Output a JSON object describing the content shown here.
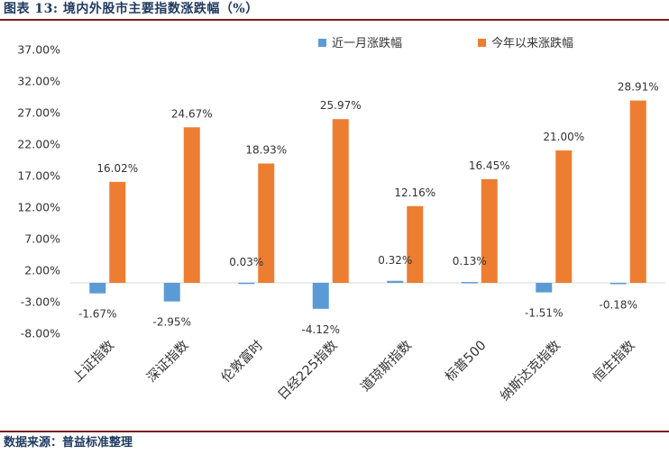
{
  "header": {
    "title": "图表 13:  境内外股市主要指数涨跌幅（%）"
  },
  "footer": {
    "source": "数据来源：普益标准整理"
  },
  "colors": {
    "blue": "#5b9bd5",
    "orange": "#ed7d31",
    "title": "#1f3a60",
    "rule": "#7a1f1f"
  },
  "chart_data": {
    "type": "bar",
    "title": "境内外股市主要指数涨跌幅（%）",
    "categories": [
      "上证指数",
      "深证指数",
      "伦敦富时",
      "日经225指数",
      "道琼斯指数",
      "标普500",
      "纳斯达克指数",
      "恒生指数"
    ],
    "series": [
      {
        "name": "近一月涨跌幅",
        "color": "#5b9bd5",
        "values": [
          -1.67,
          -2.95,
          0.03,
          -4.12,
          0.32,
          0.13,
          -1.51,
          -0.18
        ],
        "labels": [
          "-1.67%",
          "-2.95%",
          "0.03%",
          "-4.12%",
          "0.32%",
          "0.13%",
          "-1.51%",
          "-0.18%"
        ]
      },
      {
        "name": "今年以来涨跌幅",
        "color": "#ed7d31",
        "values": [
          16.02,
          24.67,
          18.93,
          25.97,
          12.16,
          16.45,
          21.0,
          28.91
        ],
        "labels": [
          "16.02%",
          "24.67%",
          "18.93%",
          "25.97%",
          "12.16%",
          "16.45%",
          "21.00%",
          "28.91%"
        ]
      }
    ],
    "yticks": [
      37,
      32,
      27,
      22,
      17,
      12,
      7,
      2,
      -3,
      -8
    ],
    "ytick_labels": [
      "37.00%",
      "32.00%",
      "27.00%",
      "22.00%",
      "17.00%",
      "12.00%",
      "7.00%",
      "2.00%",
      "-3.00%",
      "-8.00%"
    ],
    "ylim": [
      -8,
      37
    ],
    "xlabel": "",
    "ylabel": "",
    "legend_position": "top-right",
    "grid": false
  }
}
